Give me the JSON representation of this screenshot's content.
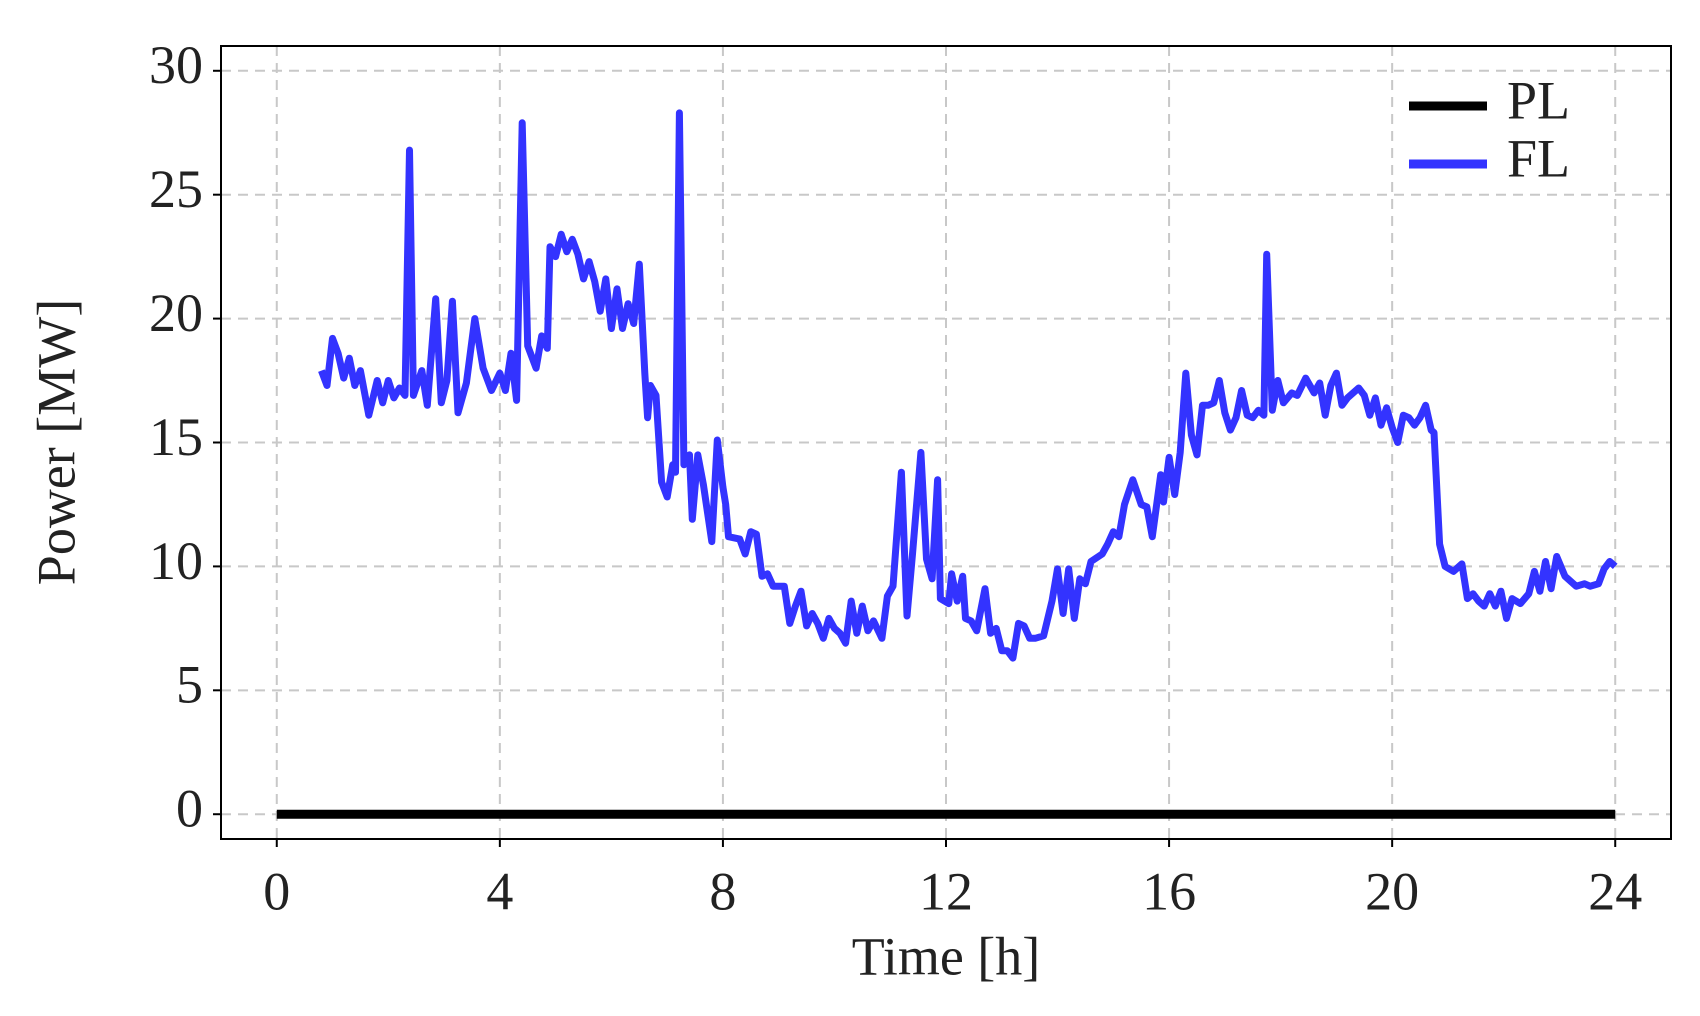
{
  "chart_data": {
    "type": "line",
    "xlabel": "Time [h]",
    "ylabel": "Power [MW]",
    "xlim": [
      -1,
      25
    ],
    "xticks": [
      0,
      4,
      8,
      12,
      16,
      20,
      24
    ],
    "ylim": [
      -1,
      31
    ],
    "yticks": [
      0,
      5,
      10,
      15,
      20,
      25,
      30
    ],
    "grid": true,
    "legend": "upper right",
    "series": [
      {
        "name": "PL",
        "color": "#000000",
        "x": [
          0,
          24
        ],
        "values": [
          0,
          0
        ]
      },
      {
        "name": "FL",
        "color": "#3333ff",
        "x": [
          0.8,
          0.9,
          1.0,
          1.1,
          1.2,
          1.3,
          1.4,
          1.5,
          1.6,
          1.65,
          1.8,
          1.9,
          2.0,
          2.1,
          2.2,
          2.3,
          2.38,
          2.45,
          2.6,
          2.7,
          2.85,
          2.95,
          3.05,
          3.15,
          3.25,
          3.4,
          3.55,
          3.7,
          3.85,
          4.0,
          4.1,
          4.2,
          4.3,
          4.4,
          4.5,
          4.65,
          4.75,
          4.85,
          4.9,
          5.0,
          5.1,
          5.2,
          5.3,
          5.4,
          5.5,
          5.6,
          5.7,
          5.8,
          5.9,
          6.0,
          6.1,
          6.2,
          6.3,
          6.4,
          6.5,
          6.6,
          6.65,
          6.7,
          6.8,
          6.9,
          7.0,
          7.1,
          7.15,
          7.22,
          7.3,
          7.4,
          7.45,
          7.55,
          7.65,
          7.8,
          7.9,
          8.0,
          8.05,
          8.1,
          8.3,
          8.4,
          8.5,
          8.6,
          8.7,
          8.8,
          8.9,
          9.1,
          9.2,
          9.3,
          9.4,
          9.5,
          9.6,
          9.7,
          9.8,
          9.9,
          10.0,
          10.1,
          10.2,
          10.3,
          10.4,
          10.5,
          10.6,
          10.7,
          10.85,
          10.95,
          11.05,
          11.2,
          11.3,
          11.4,
          11.55,
          11.65,
          11.75,
          11.85,
          11.9,
          12.05,
          12.1,
          12.2,
          12.3,
          12.35,
          12.45,
          12.55,
          12.7,
          12.8,
          12.9,
          13.0,
          13.1,
          13.2,
          13.3,
          13.4,
          13.5,
          13.6,
          13.75,
          13.9,
          14.0,
          14.1,
          14.2,
          14.3,
          14.4,
          14.5,
          14.6,
          14.8,
          14.9,
          15.0,
          15.1,
          15.2,
          15.35,
          15.5,
          15.6,
          15.7,
          15.85,
          15.9,
          16.0,
          16.1,
          16.2,
          16.3,
          16.4,
          16.5,
          16.6,
          16.7,
          16.8,
          16.9,
          17.0,
          17.1,
          17.2,
          17.3,
          17.4,
          17.5,
          17.6,
          17.7,
          17.75,
          17.85,
          17.95,
          18.05,
          18.2,
          18.3,
          18.45,
          18.6,
          18.7,
          18.8,
          18.9,
          19.0,
          19.1,
          19.2,
          19.4,
          19.5,
          19.6,
          19.7,
          19.8,
          19.9,
          20.0,
          20.1,
          20.2,
          20.3,
          20.4,
          20.5,
          20.6,
          20.7,
          20.75,
          20.85,
          20.95,
          21.1,
          21.25,
          21.35,
          21.45,
          21.55,
          21.65,
          21.75,
          21.85,
          21.95,
          22.05,
          22.15,
          22.3,
          22.45,
          22.55,
          22.65,
          22.75,
          22.85,
          22.95,
          23.1,
          23.3,
          23.45,
          23.55,
          23.7,
          23.8,
          23.9,
          24.0
        ],
        "values": [
          17.9,
          17.3,
          19.2,
          18.6,
          17.6,
          18.4,
          17.3,
          17.9,
          16.7,
          16.1,
          17.5,
          16.6,
          17.5,
          16.8,
          17.2,
          16.9,
          26.8,
          16.9,
          17.9,
          16.5,
          20.8,
          16.6,
          17.5,
          20.7,
          16.2,
          17.4,
          20.0,
          18.0,
          17.1,
          17.8,
          17.1,
          18.6,
          16.7,
          27.9,
          18.9,
          18.0,
          19.3,
          18.8,
          22.9,
          22.5,
          23.4,
          22.7,
          23.2,
          22.6,
          21.6,
          22.3,
          21.5,
          20.3,
          21.6,
          19.6,
          21.2,
          19.6,
          20.6,
          19.8,
          22.2,
          17.8,
          16.0,
          17.3,
          16.9,
          13.4,
          12.8,
          14.1,
          13.8,
          28.3,
          14.1,
          14.5,
          11.9,
          14.5,
          13.3,
          11.0,
          15.1,
          13.2,
          12.5,
          11.2,
          11.1,
          10.5,
          11.4,
          11.3,
          9.6,
          9.7,
          9.2,
          9.2,
          7.7,
          8.4,
          9.0,
          7.6,
          8.1,
          7.7,
          7.1,
          7.9,
          7.5,
          7.3,
          6.9,
          8.6,
          7.3,
          8.4,
          7.4,
          7.8,
          7.1,
          8.8,
          9.2,
          13.8,
          8.0,
          10.5,
          14.6,
          10.3,
          9.5,
          13.5,
          8.7,
          8.5,
          9.7,
          8.6,
          9.6,
          7.9,
          7.8,
          7.4,
          9.1,
          7.3,
          7.5,
          6.6,
          6.6,
          6.3,
          7.7,
          7.6,
          7.1,
          7.1,
          7.2,
          8.6,
          9.9,
          8.1,
          9.9,
          7.9,
          9.5,
          9.3,
          10.2,
          10.5,
          10.9,
          11.4,
          11.2,
          12.5,
          13.5,
          12.5,
          12.4,
          11.2,
          13.7,
          12.6,
          14.4,
          12.9,
          14.6,
          17.8,
          15.3,
          14.5,
          16.5,
          16.5,
          16.6,
          17.5,
          16.2,
          15.5,
          16.0,
          17.1,
          16.1,
          16.0,
          16.3,
          16.1,
          22.6,
          16.3,
          17.5,
          16.6,
          17.0,
          16.9,
          17.6,
          17.0,
          17.4,
          16.1,
          17.3,
          17.8,
          16.5,
          16.8,
          17.2,
          16.9,
          16.1,
          16.8,
          15.7,
          16.4,
          15.6,
          15.0,
          16.1,
          16.0,
          15.7,
          16.0,
          16.5,
          15.5,
          15.4,
          10.9,
          10.0,
          9.8,
          10.1,
          8.7,
          8.9,
          8.6,
          8.4,
          8.9,
          8.4,
          9.0,
          7.9,
          8.7,
          8.5,
          8.9,
          9.8,
          9.0,
          10.2,
          9.1,
          10.4,
          9.6,
          9.2,
          9.3,
          9.2,
          9.3,
          9.9,
          10.2,
          10.0
        ]
      }
    ]
  }
}
